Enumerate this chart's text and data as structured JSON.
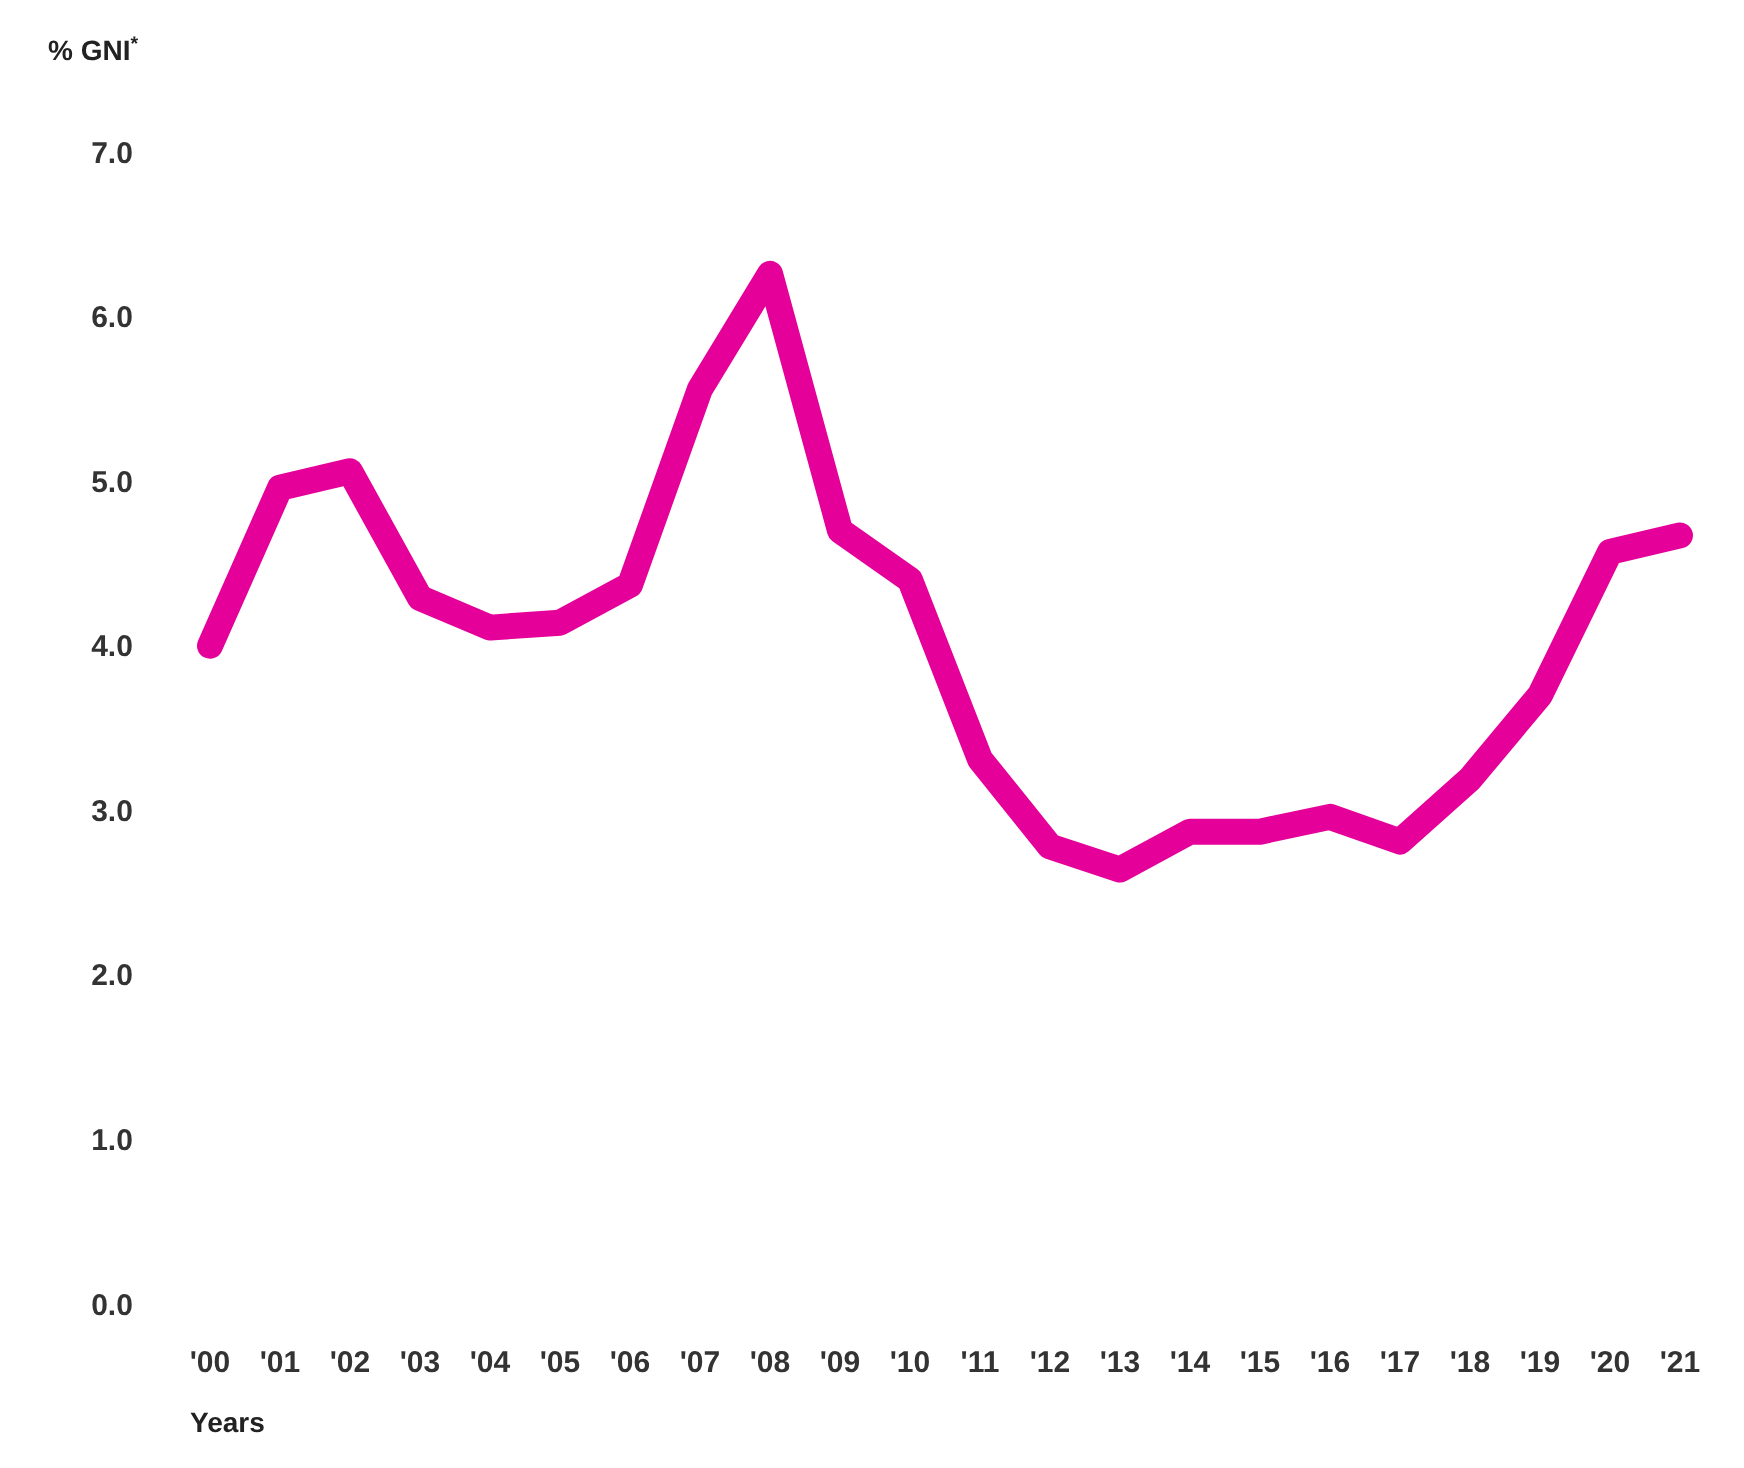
{
  "chart_data": {
    "type": "line",
    "ylabel": "% GNI$^{*}$",
    "xlabel": "Years",
    "categories": [
      "'00",
      "'01",
      "'02",
      "'03",
      "'04",
      "'05",
      "'06",
      "'07",
      "'08",
      "'09",
      "'10",
      "'11",
      "'12",
      "'13",
      "'14",
      "'15",
      "'16",
      "'17",
      "'18",
      "'19",
      "'20",
      "'21"
    ],
    "series": [
      {
        "color": "#e5009a",
        "values": [
          4.0,
          4.96,
          5.06,
          4.29,
          4.11,
          4.14,
          4.37,
          5.56,
          6.26,
          4.7,
          4.4,
          3.31,
          2.78,
          2.64,
          2.87,
          2.87,
          2.96,
          2.81,
          3.19,
          3.7,
          4.57,
          4.67
        ]
      }
    ],
    "ylim": [
      0,
      7
    ],
    "yticks": [
      {
        "value": 0,
        "label": "0.0"
      },
      {
        "value": 1,
        "label": "1.0"
      },
      {
        "value": 2,
        "label": "2.0"
      },
      {
        "value": 3,
        "label": "3.0"
      },
      {
        "value": 4,
        "label": "4.0"
      },
      {
        "value": 5,
        "label": "5.0"
      },
      {
        "value": 6,
        "label": "6.0"
      },
      {
        "value": 7,
        "label": "7.0"
      }
    ],
    "grid": false,
    "marker": "none",
    "line_style": "solid"
  }
}
